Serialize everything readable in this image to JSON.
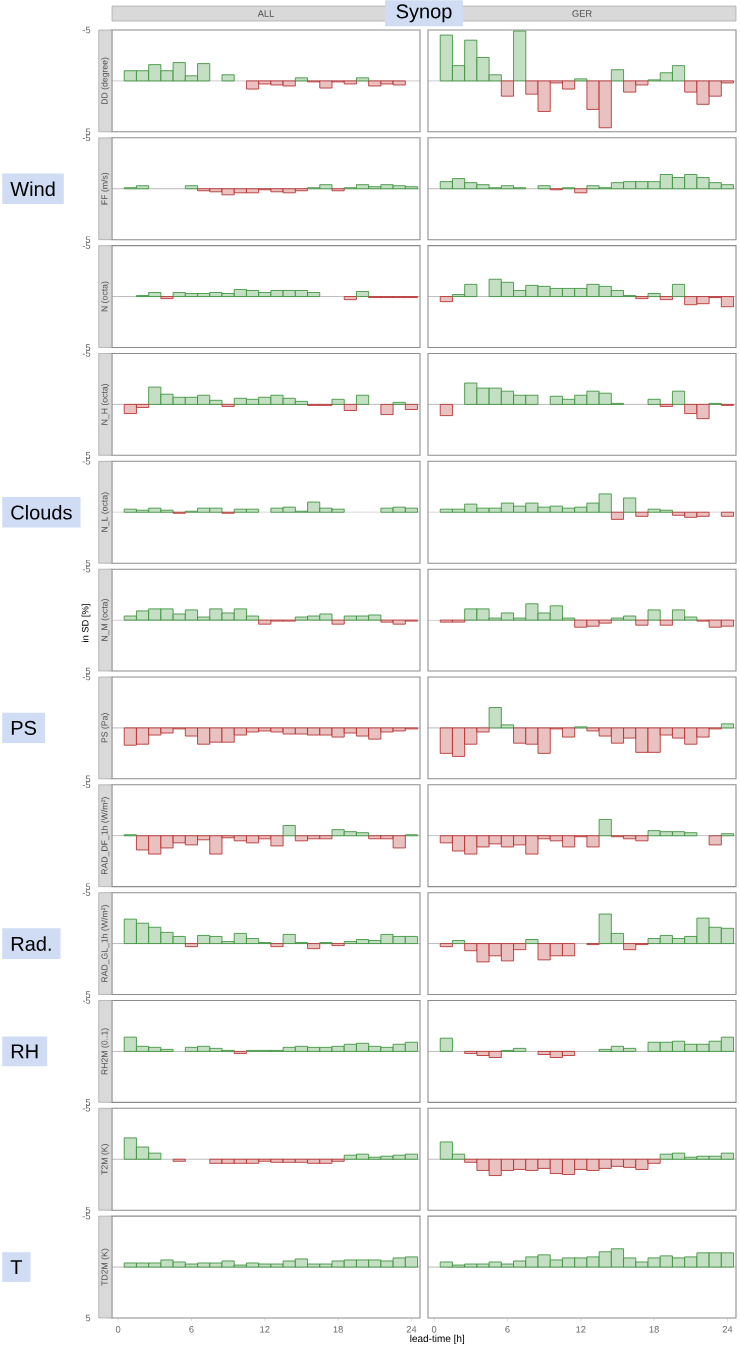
{
  "chart_data": [
    {
      "type": "bar",
      "title": "ALL",
      "ylabel": "DD (degree)",
      "annotations": [
        "Synop",
        "in SD [%]"
      ],
      "x": [
        1,
        2,
        3,
        4,
        5,
        6,
        7,
        8,
        9,
        10,
        11,
        12,
        13,
        14,
        15,
        16,
        17,
        18,
        19,
        20,
        21,
        22,
        23
      ],
      "values": [
        -1.0,
        -1.0,
        -1.6,
        -1.0,
        -1.8,
        -0.5,
        -1.7,
        null,
        -0.6,
        null,
        0.8,
        0.3,
        0.4,
        0.5,
        -0.3,
        0.1,
        0.7,
        0.1,
        0.3,
        -0.3,
        0.5,
        0.3,
        0.4
      ],
      "colors": [
        "#2e8b2e",
        "#2e8b2e",
        "#2e8b2e",
        "#2e8b2e",
        "#2e8b2e",
        "#2e8b2e",
        "#2e8b2e",
        "#2e8b2e",
        "#2e8b2e",
        "#2e8b2e",
        "#b22222",
        "#b22222",
        "#b22222",
        "#b22222",
        "#2e8b2e",
        "#b22222",
        "#b22222",
        "#b22222",
        "#b22222",
        "#2e8b2e",
        "#b22222",
        "#b22222",
        "#b22222"
      ],
      "xlim": [
        -0.5,
        24.7
      ],
      "xticks": [
        0,
        6,
        12,
        18,
        24
      ],
      "ylim": [
        5,
        -5
      ],
      "yticks": [
        -5,
        5
      ],
      "tick_labels": "y",
      "ref_lines": [
        {
          "axis": "y",
          "value": 0,
          "color": "#999999"
        }
      ]
    },
    {
      "type": "bar",
      "title": "GER",
      "x": [
        1,
        2,
        3,
        4,
        5,
        6,
        7,
        8,
        9,
        10,
        11,
        12,
        13,
        14,
        15,
        16,
        17,
        18,
        19,
        20,
        21,
        22,
        23,
        24
      ],
      "values": [
        -4.5,
        -1.5,
        -4.0,
        -2.3,
        -0.6,
        1.5,
        -4.9,
        1.3,
        3.0,
        0.2,
        0.8,
        -0.2,
        2.8,
        4.6,
        -1.1,
        1.1,
        0.4,
        -0.1,
        -0.8,
        -1.5,
        1.1,
        2.3,
        1.5,
        0.2
      ],
      "colors": [
        "#2e8b2e",
        "#2e8b2e",
        "#2e8b2e",
        "#2e8b2e",
        "#2e8b2e",
        "#b22222",
        "#2e8b2e",
        "#b22222",
        "#b22222",
        "#b22222",
        "#b22222",
        "#2e8b2e",
        "#b22222",
        "#b22222",
        "#2e8b2e",
        "#b22222",
        "#b22222",
        "#2e8b2e",
        "#2e8b2e",
        "#2e8b2e",
        "#b22222",
        "#b22222",
        "#b22222",
        "#b22222"
      ],
      "xlim": [
        -0.5,
        24.7
      ],
      "xticks": [
        0,
        6,
        12,
        18,
        24
      ],
      "ylim": [
        5,
        -5
      ],
      "yticks": [
        -5,
        5
      ],
      "tick_labels": false,
      "ref_lines": [
        {
          "axis": "y",
          "value": 0,
          "color": "#999999"
        }
      ]
    },
    {
      "type": "bar",
      "ylabel": "FF (m/s)",
      "annotations": [
        "Wind"
      ],
      "x": [
        1,
        2,
        3,
        4,
        5,
        6,
        7,
        8,
        9,
        10,
        11,
        12,
        13,
        14,
        15,
        16,
        17,
        18,
        19,
        20,
        21,
        22,
        23,
        24
      ],
      "values": [
        -0.1,
        -0.3,
        null,
        null,
        null,
        -0.3,
        0.2,
        0.3,
        0.6,
        0.4,
        0.4,
        0.1,
        0.3,
        0.4,
        0.2,
        -0.1,
        -0.4,
        0.2,
        -0.1,
        -0.4,
        -0.2,
        -0.4,
        -0.3,
        -0.2
      ],
      "colors": [
        "#2e8b2e",
        "#2e8b2e",
        "#2e8b2e",
        "#2e8b2e",
        "#2e8b2e",
        "#2e8b2e",
        "#b22222",
        "#b22222",
        "#b22222",
        "#b22222",
        "#b22222",
        "#b22222",
        "#b22222",
        "#b22222",
        "#b22222",
        "#2e8b2e",
        "#2e8b2e",
        "#b22222",
        "#2e8b2e",
        "#2e8b2e",
        "#2e8b2e",
        "#2e8b2e",
        "#2e8b2e",
        "#2e8b2e"
      ],
      "xlim": [
        -0.5,
        24.7
      ],
      "xticks": [
        0,
        6,
        12,
        18,
        24
      ],
      "ylim": [
        5,
        -5
      ],
      "yticks": [
        -5,
        5
      ],
      "tick_labels": "y",
      "ref_lines": [
        {
          "axis": "y",
          "value": 0,
          "color": "#999999"
        }
      ]
    },
    {
      "type": "bar",
      "x": [
        1,
        2,
        3,
        4,
        5,
        6,
        7,
        8,
        9,
        10,
        11,
        12,
        13,
        14,
        15,
        16,
        17,
        18,
        19,
        20,
        21,
        22,
        23,
        24
      ],
      "values": [
        -0.7,
        -1.0,
        -0.6,
        -0.4,
        -0.1,
        -0.3,
        -0.1,
        null,
        -0.3,
        0.1,
        -0.1,
        0.4,
        -0.3,
        -0.1,
        -0.6,
        -0.7,
        -0.7,
        -0.7,
        -1.4,
        -1.1,
        -1.4,
        -1.1,
        -0.6,
        -0.4
      ],
      "colors": [
        "#2e8b2e",
        "#2e8b2e",
        "#2e8b2e",
        "#2e8b2e",
        "#2e8b2e",
        "#2e8b2e",
        "#2e8b2e",
        "#2e8b2e",
        "#2e8b2e",
        "#b22222",
        "#2e8b2e",
        "#b22222",
        "#2e8b2e",
        "#2e8b2e",
        "#2e8b2e",
        "#2e8b2e",
        "#2e8b2e",
        "#2e8b2e",
        "#2e8b2e",
        "#2e8b2e",
        "#2e8b2e",
        "#2e8b2e",
        "#2e8b2e",
        "#2e8b2e"
      ],
      "xlim": [
        -0.5,
        24.7
      ],
      "xticks": [
        0,
        6,
        12,
        18,
        24
      ],
      "ylim": [
        5,
        -5
      ],
      "yticks": [
        -5,
        5
      ],
      "tick_labels": false,
      "ref_lines": [
        {
          "axis": "y",
          "value": 0,
          "color": "#999999"
        }
      ]
    },
    {
      "type": "bar",
      "ylabel": "N (octa)",
      "x": [
        2,
        3,
        4,
        5,
        6,
        7,
        8,
        9,
        10,
        11,
        12,
        13,
        14,
        15,
        16,
        17,
        18,
        19,
        20,
        21,
        22,
        23,
        24
      ],
      "values": [
        -0.1,
        -0.4,
        0.2,
        -0.4,
        -0.3,
        -0.3,
        -0.4,
        -0.3,
        -0.7,
        -0.6,
        -0.4,
        -0.6,
        -0.6,
        -0.6,
        -0.4,
        null,
        null,
        0.3,
        -0.5,
        0.1,
        0.1,
        0.1,
        0.1
      ],
      "colors": [
        "#2e8b2e",
        "#2e8b2e",
        "#b22222",
        "#2e8b2e",
        "#2e8b2e",
        "#2e8b2e",
        "#2e8b2e",
        "#2e8b2e",
        "#2e8b2e",
        "#2e8b2e",
        "#2e8b2e",
        "#2e8b2e",
        "#2e8b2e",
        "#2e8b2e",
        "#2e8b2e",
        "#2e8b2e",
        "#2e8b2e",
        "#b22222",
        "#2e8b2e",
        "#b22222",
        "#b22222",
        "#b22222",
        "#b22222"
      ],
      "xlim": [
        -0.5,
        24.7
      ],
      "xticks": [
        0,
        6,
        12,
        18,
        24
      ],
      "ylim": [
        5,
        -5
      ],
      "yticks": [
        -5,
        5
      ],
      "tick_labels": "y",
      "ref_lines": [
        {
          "axis": "y",
          "value": 0,
          "color": "#999999"
        }
      ]
    },
    {
      "type": "bar",
      "x": [
        1,
        2,
        3,
        4,
        5,
        6,
        7,
        8,
        9,
        10,
        11,
        12,
        13,
        14,
        15,
        16,
        17,
        18,
        19,
        20,
        21,
        22,
        23,
        24
      ],
      "values": [
        0.5,
        -0.2,
        -1.2,
        null,
        -1.7,
        -1.4,
        -0.6,
        -1.1,
        -1.0,
        -0.8,
        -0.8,
        -0.8,
        -1.2,
        -1.0,
        -0.6,
        -0.1,
        0.2,
        -0.3,
        0.3,
        -1.2,
        0.8,
        0.7,
        0.1,
        1.0
      ],
      "colors": [
        "#b22222",
        "#2e8b2e",
        "#2e8b2e",
        "#2e8b2e",
        "#2e8b2e",
        "#2e8b2e",
        "#2e8b2e",
        "#2e8b2e",
        "#2e8b2e",
        "#2e8b2e",
        "#2e8b2e",
        "#2e8b2e",
        "#2e8b2e",
        "#2e8b2e",
        "#2e8b2e",
        "#2e8b2e",
        "#b22222",
        "#2e8b2e",
        "#b22222",
        "#2e8b2e",
        "#b22222",
        "#b22222",
        "#b22222",
        "#b22222"
      ],
      "xlim": [
        -0.5,
        24.7
      ],
      "xticks": [
        0,
        6,
        12,
        18,
        24
      ],
      "ylim": [
        5,
        -5
      ],
      "yticks": [
        -5,
        5
      ],
      "tick_labels": false,
      "ref_lines": [
        {
          "axis": "y",
          "value": 0,
          "color": "#999999"
        }
      ]
    },
    {
      "type": "bar",
      "ylabel": "N_H (octa)",
      "x": [
        1,
        2,
        3,
        4,
        5,
        6,
        7,
        8,
        9,
        10,
        11,
        12,
        13,
        14,
        15,
        16,
        17,
        18,
        19,
        20,
        21,
        22,
        23,
        24
      ],
      "values": [
        0.9,
        0.3,
        -1.7,
        -1.0,
        -0.7,
        -0.7,
        -0.9,
        -0.4,
        0.2,
        -0.6,
        -0.5,
        -0.7,
        -0.9,
        -0.6,
        -0.3,
        0.1,
        0.1,
        -0.5,
        0.6,
        -0.9,
        null,
        1.0,
        -0.2,
        0.5
      ],
      "colors": [
        "#b22222",
        "#b22222",
        "#2e8b2e",
        "#2e8b2e",
        "#2e8b2e",
        "#2e8b2e",
        "#2e8b2e",
        "#2e8b2e",
        "#b22222",
        "#2e8b2e",
        "#2e8b2e",
        "#2e8b2e",
        "#2e8b2e",
        "#2e8b2e",
        "#2e8b2e",
        "#b22222",
        "#b22222",
        "#2e8b2e",
        "#b22222",
        "#2e8b2e",
        "#2e8b2e",
        "#b22222",
        "#2e8b2e",
        "#b22222"
      ],
      "xlim": [
        -0.5,
        24.7
      ],
      "xticks": [
        0,
        6,
        12,
        18,
        24
      ],
      "ylim": [
        5,
        -5
      ],
      "yticks": [
        -5,
        5
      ],
      "tick_labels": "y",
      "ref_lines": [
        {
          "axis": "y",
          "value": 0,
          "color": "#999999"
        }
      ]
    },
    {
      "type": "bar",
      "x": [
        1,
        2,
        3,
        4,
        5,
        6,
        7,
        8,
        9,
        10,
        11,
        12,
        13,
        14,
        15,
        16,
        17,
        18,
        19,
        20,
        21,
        22,
        23,
        24
      ],
      "values": [
        1.1,
        null,
        -2.1,
        -1.6,
        -1.6,
        -1.3,
        -0.9,
        -0.9,
        null,
        -0.8,
        -0.5,
        -0.9,
        -1.3,
        -1.1,
        -0.1,
        null,
        null,
        -0.5,
        0.2,
        -1.3,
        0.9,
        1.4,
        -0.1,
        0.1
      ],
      "colors": [
        "#b22222",
        "#2e8b2e",
        "#2e8b2e",
        "#2e8b2e",
        "#2e8b2e",
        "#2e8b2e",
        "#2e8b2e",
        "#2e8b2e",
        "#2e8b2e",
        "#2e8b2e",
        "#2e8b2e",
        "#2e8b2e",
        "#2e8b2e",
        "#2e8b2e",
        "#2e8b2e",
        "#2e8b2e",
        "#2e8b2e",
        "#2e8b2e",
        "#b22222",
        "#2e8b2e",
        "#b22222",
        "#b22222",
        "#2e8b2e",
        "#b22222"
      ],
      "xlim": [
        -0.5,
        24.7
      ],
      "xticks": [
        0,
        6,
        12,
        18,
        24
      ],
      "ylim": [
        5,
        -5
      ],
      "yticks": [
        -5,
        5
      ],
      "tick_labels": false,
      "ref_lines": [
        {
          "axis": "y",
          "value": 0,
          "color": "#999999"
        }
      ]
    },
    {
      "type": "bar",
      "ylabel": "N_L (octa)",
      "annotations": [
        "Clouds"
      ],
      "x": [
        1,
        2,
        3,
        4,
        5,
        6,
        7,
        8,
        9,
        10,
        11,
        12,
        13,
        14,
        15,
        16,
        17,
        18,
        19,
        20,
        21,
        22,
        23,
        24
      ],
      "values": [
        -0.3,
        -0.2,
        -0.4,
        -0.2,
        0.1,
        -0.1,
        -0.4,
        -0.4,
        0.1,
        -0.3,
        -0.3,
        null,
        -0.4,
        -0.5,
        -0.1,
        -1.0,
        -0.4,
        -0.3,
        null,
        null,
        null,
        -0.4,
        -0.5,
        -0.4
      ],
      "colors": [
        "#2e8b2e",
        "#2e8b2e",
        "#2e8b2e",
        "#2e8b2e",
        "#b22222",
        "#2e8b2e",
        "#2e8b2e",
        "#2e8b2e",
        "#b22222",
        "#2e8b2e",
        "#2e8b2e",
        "#2e8b2e",
        "#2e8b2e",
        "#2e8b2e",
        "#2e8b2e",
        "#2e8b2e",
        "#2e8b2e",
        "#2e8b2e",
        "#2e8b2e",
        "#2e8b2e",
        "#2e8b2e",
        "#2e8b2e",
        "#2e8b2e",
        "#2e8b2e"
      ],
      "xlim": [
        -0.5,
        24.7
      ],
      "xticks": [
        0,
        6,
        12,
        18,
        24
      ],
      "ylim": [
        5,
        -5
      ],
      "yticks": [
        -5,
        5
      ],
      "tick_labels": "y",
      "ref_lines": [
        {
          "axis": "y",
          "value": 0,
          "color": "#999999"
        }
      ]
    },
    {
      "type": "bar",
      "x": [
        1,
        2,
        3,
        4,
        5,
        6,
        7,
        8,
        9,
        10,
        11,
        12,
        13,
        14,
        15,
        16,
        17,
        18,
        19,
        20,
        21,
        22,
        23,
        24
      ],
      "values": [
        -0.3,
        -0.3,
        -0.8,
        -0.4,
        -0.4,
        -0.9,
        -0.6,
        -0.9,
        -0.5,
        -0.6,
        -0.4,
        -0.5,
        -0.9,
        -1.8,
        0.7,
        -1.4,
        0.4,
        -0.3,
        -0.2,
        0.3,
        0.5,
        0.4,
        null,
        0.4
      ],
      "colors": [
        "#2e8b2e",
        "#2e8b2e",
        "#2e8b2e",
        "#2e8b2e",
        "#2e8b2e",
        "#2e8b2e",
        "#2e8b2e",
        "#2e8b2e",
        "#2e8b2e",
        "#2e8b2e",
        "#2e8b2e",
        "#2e8b2e",
        "#2e8b2e",
        "#2e8b2e",
        "#b22222",
        "#2e8b2e",
        "#b22222",
        "#2e8b2e",
        "#2e8b2e",
        "#b22222",
        "#b22222",
        "#b22222",
        "#2e8b2e",
        "#b22222"
      ],
      "xlim": [
        -0.5,
        24.7
      ],
      "xticks": [
        0,
        6,
        12,
        18,
        24
      ],
      "ylim": [
        5,
        -5
      ],
      "yticks": [
        -5,
        5
      ],
      "tick_labels": false,
      "ref_lines": [
        {
          "axis": "y",
          "value": 0,
          "color": "#999999"
        }
      ]
    },
    {
      "type": "bar",
      "ylabel": "N_M (octa)",
      "x": [
        1,
        2,
        3,
        4,
        5,
        6,
        7,
        8,
        9,
        10,
        11,
        12,
        13,
        14,
        15,
        16,
        17,
        18,
        19,
        20,
        21,
        22,
        23,
        24
      ],
      "values": [
        -0.4,
        -0.9,
        -1.1,
        -1.1,
        -0.6,
        -1.0,
        -0.3,
        -1.1,
        -0.7,
        -1.1,
        -0.4,
        0.4,
        0.1,
        0.1,
        -0.3,
        -0.4,
        -0.6,
        0.4,
        -0.4,
        -0.4,
        -0.5,
        0.2,
        0.4,
        0.1
      ],
      "colors": [
        "#2e8b2e",
        "#2e8b2e",
        "#2e8b2e",
        "#2e8b2e",
        "#2e8b2e",
        "#2e8b2e",
        "#2e8b2e",
        "#2e8b2e",
        "#2e8b2e",
        "#2e8b2e",
        "#2e8b2e",
        "#b22222",
        "#b22222",
        "#b22222",
        "#2e8b2e",
        "#2e8b2e",
        "#2e8b2e",
        "#b22222",
        "#2e8b2e",
        "#2e8b2e",
        "#2e8b2e",
        "#b22222",
        "#b22222",
        "#b22222"
      ],
      "xlim": [
        -0.5,
        24.7
      ],
      "xticks": [
        0,
        6,
        12,
        18,
        24
      ],
      "ylim": [
        5,
        -5
      ],
      "yticks": [
        -5,
        5
      ],
      "tick_labels": "y",
      "ref_lines": [
        {
          "axis": "y",
          "value": 0,
          "color": "#999999"
        }
      ]
    },
    {
      "type": "bar",
      "x": [
        1,
        2,
        3,
        4,
        5,
        6,
        7,
        8,
        9,
        10,
        11,
        12,
        13,
        14,
        15,
        16,
        17,
        18,
        19,
        20,
        21,
        22,
        23,
        24
      ],
      "values": [
        0.2,
        0.2,
        -1.1,
        -1.1,
        -0.2,
        -0.7,
        -0.2,
        -1.6,
        -0.7,
        -1.4,
        -0.2,
        0.7,
        0.6,
        0.3,
        -0.2,
        -0.4,
        0.5,
        -1.0,
        0.5,
        -1.0,
        -0.3,
        0.1,
        0.7,
        0.6
      ],
      "colors": [
        "#b22222",
        "#b22222",
        "#2e8b2e",
        "#2e8b2e",
        "#2e8b2e",
        "#2e8b2e",
        "#2e8b2e",
        "#2e8b2e",
        "#2e8b2e",
        "#2e8b2e",
        "#2e8b2e",
        "#b22222",
        "#b22222",
        "#b22222",
        "#2e8b2e",
        "#2e8b2e",
        "#b22222",
        "#2e8b2e",
        "#b22222",
        "#2e8b2e",
        "#2e8b2e",
        "#b22222",
        "#b22222",
        "#b22222"
      ],
      "xlim": [
        -0.5,
        24.7
      ],
      "xticks": [
        0,
        6,
        12,
        18,
        24
      ],
      "ylim": [
        5,
        -5
      ],
      "yticks": [
        -5,
        5
      ],
      "tick_labels": false,
      "ref_lines": [
        {
          "axis": "y",
          "value": 0,
          "color": "#999999"
        }
      ]
    },
    {
      "type": "bar",
      "ylabel": "PS (Pa)",
      "annotations": [
        "PS"
      ],
      "x": [
        1,
        2,
        3,
        4,
        5,
        6,
        7,
        8,
        9,
        10,
        11,
        12,
        13,
        14,
        15,
        16,
        17,
        18,
        19,
        20,
        21,
        22,
        23,
        24
      ],
      "values": [
        1.7,
        1.6,
        0.7,
        0.5,
        0.1,
        0.8,
        1.6,
        1.4,
        1.4,
        0.7,
        0.4,
        0.3,
        0.4,
        0.6,
        0.6,
        0.7,
        0.7,
        0.9,
        0.5,
        0.8,
        1.1,
        0.4,
        0.3,
        0.1
      ],
      "colors": [
        "#b22222",
        "#b22222",
        "#b22222",
        "#b22222",
        "#b22222",
        "#b22222",
        "#b22222",
        "#b22222",
        "#b22222",
        "#b22222",
        "#b22222",
        "#b22222",
        "#b22222",
        "#b22222",
        "#b22222",
        "#b22222",
        "#b22222",
        "#b22222",
        "#b22222",
        "#b22222",
        "#b22222",
        "#b22222",
        "#b22222",
        "#b22222"
      ],
      "xlim": [
        -0.5,
        24.7
      ],
      "xticks": [
        0,
        6,
        12,
        18,
        24
      ],
      "ylim": [
        5,
        -5
      ],
      "yticks": [
        -5,
        5
      ],
      "tick_labels": "y",
      "ref_lines": [
        {
          "axis": "y",
          "value": 0,
          "color": "#999999"
        }
      ]
    },
    {
      "type": "bar",
      "x": [
        1,
        2,
        3,
        4,
        5,
        6,
        7,
        8,
        9,
        10,
        11,
        12,
        13,
        14,
        15,
        16,
        17,
        18,
        19,
        20,
        21,
        22,
        23,
        24
      ],
      "values": [
        2.5,
        2.8,
        1.6,
        0.4,
        -2.0,
        -0.3,
        1.5,
        1.6,
        2.5,
        0.1,
        0.9,
        -0.1,
        0.3,
        0.8,
        1.5,
        1.0,
        2.4,
        2.4,
        0.7,
        1.0,
        1.6,
        0.9,
        0.1,
        -0.4
      ],
      "colors": [
        "#b22222",
        "#b22222",
        "#b22222",
        "#b22222",
        "#2e8b2e",
        "#2e8b2e",
        "#b22222",
        "#b22222",
        "#b22222",
        "#b22222",
        "#b22222",
        "#2e8b2e",
        "#b22222",
        "#b22222",
        "#b22222",
        "#b22222",
        "#b22222",
        "#b22222",
        "#b22222",
        "#b22222",
        "#b22222",
        "#b22222",
        "#b22222",
        "#2e8b2e"
      ],
      "xlim": [
        -0.5,
        24.7
      ],
      "xticks": [
        0,
        6,
        12,
        18,
        24
      ],
      "ylim": [
        5,
        -5
      ],
      "yticks": [
        -5,
        5
      ],
      "tick_labels": false,
      "ref_lines": [
        {
          "axis": "y",
          "value": 0,
          "color": "#999999"
        }
      ]
    },
    {
      "type": "bar",
      "ylabel": "RAD_DF_1h (W/m²)",
      "x": [
        1,
        2,
        3,
        4,
        5,
        6,
        7,
        8,
        9,
        10,
        11,
        12,
        13,
        14,
        15,
        16,
        17,
        18,
        19,
        20,
        21,
        22,
        23,
        24
      ],
      "values": [
        -0.1,
        1.4,
        1.8,
        1.2,
        0.7,
        0.9,
        0.4,
        1.8,
        0.2,
        0.5,
        0.7,
        0.3,
        1.0,
        -1.0,
        0.5,
        0.3,
        0.3,
        -0.6,
        -0.4,
        -0.3,
        0.3,
        0.3,
        1.2,
        -0.1
      ],
      "colors": [
        "#2e8b2e",
        "#b22222",
        "#b22222",
        "#b22222",
        "#b22222",
        "#b22222",
        "#b22222",
        "#b22222",
        "#b22222",
        "#b22222",
        "#b22222",
        "#b22222",
        "#b22222",
        "#2e8b2e",
        "#b22222",
        "#b22222",
        "#b22222",
        "#2e8b2e",
        "#2e8b2e",
        "#2e8b2e",
        "#b22222",
        "#b22222",
        "#b22222",
        "#2e8b2e"
      ],
      "xlim": [
        -0.5,
        24.7
      ],
      "xticks": [
        0,
        6,
        12,
        18,
        24
      ],
      "ylim": [
        5,
        -5
      ],
      "yticks": [
        -5,
        5
      ],
      "tick_labels": "y",
      "ref_lines": [
        {
          "axis": "y",
          "value": 0,
          "color": "#999999"
        }
      ]
    },
    {
      "type": "bar",
      "x": [
        1,
        2,
        3,
        4,
        5,
        6,
        7,
        8,
        9,
        10,
        11,
        12,
        13,
        14,
        15,
        16,
        17,
        18,
        19,
        20,
        21,
        22,
        23,
        24
      ],
      "values": [
        0.7,
        1.5,
        1.8,
        1.1,
        0.8,
        1.1,
        0.9,
        1.8,
        0.3,
        0.5,
        1.1,
        0.1,
        1.1,
        -1.6,
        0.1,
        0.3,
        0.5,
        -0.5,
        -0.4,
        -0.4,
        -0.3,
        null,
        0.9,
        -0.2
      ],
      "colors": [
        "#b22222",
        "#b22222",
        "#b22222",
        "#b22222",
        "#b22222",
        "#b22222",
        "#b22222",
        "#b22222",
        "#b22222",
        "#b22222",
        "#b22222",
        "#b22222",
        "#b22222",
        "#2e8b2e",
        "#b22222",
        "#b22222",
        "#b22222",
        "#2e8b2e",
        "#2e8b2e",
        "#2e8b2e",
        "#2e8b2e",
        "#2e8b2e",
        "#b22222",
        "#2e8b2e"
      ],
      "xlim": [
        -0.5,
        24.7
      ],
      "xticks": [
        0,
        6,
        12,
        18,
        24
      ],
      "ylim": [
        5,
        -5
      ],
      "yticks": [
        -5,
        5
      ],
      "tick_labels": false,
      "ref_lines": [
        {
          "axis": "y",
          "value": 0,
          "color": "#999999"
        }
      ]
    },
    {
      "type": "bar",
      "ylabel": "RAD_GL_1h (W/m²)",
      "annotations": [
        "Rad."
      ],
      "x": [
        1,
        2,
        3,
        4,
        5,
        6,
        7,
        8,
        9,
        10,
        11,
        12,
        13,
        14,
        15,
        16,
        17,
        18,
        19,
        20,
        21,
        22,
        23,
        24
      ],
      "values": [
        -2.4,
        -2.0,
        -1.6,
        -1.1,
        -0.7,
        0.3,
        -0.8,
        -0.7,
        -0.2,
        -1.0,
        -0.5,
        -0.1,
        0.3,
        -0.9,
        -0.1,
        0.5,
        -0.1,
        0.2,
        -0.2,
        -0.4,
        -0.3,
        -0.9,
        -0.7,
        -0.7
      ],
      "colors": [
        "#2e8b2e",
        "#2e8b2e",
        "#2e8b2e",
        "#2e8b2e",
        "#2e8b2e",
        "#b22222",
        "#2e8b2e",
        "#2e8b2e",
        "#2e8b2e",
        "#2e8b2e",
        "#2e8b2e",
        "#2e8b2e",
        "#b22222",
        "#2e8b2e",
        "#2e8b2e",
        "#b22222",
        "#2e8b2e",
        "#b22222",
        "#2e8b2e",
        "#2e8b2e",
        "#2e8b2e",
        "#2e8b2e",
        "#2e8b2e",
        "#2e8b2e"
      ],
      "xlim": [
        -0.5,
        24.7
      ],
      "xticks": [
        0,
        6,
        12,
        18,
        24
      ],
      "ylim": [
        5,
        -5
      ],
      "yticks": [
        -5,
        5
      ],
      "tick_labels": "y",
      "ref_lines": [
        {
          "axis": "y",
          "value": 0,
          "color": "#999999"
        }
      ]
    },
    {
      "type": "bar",
      "x": [
        1,
        2,
        3,
        4,
        5,
        6,
        7,
        8,
        9,
        10,
        11,
        12,
        13,
        14,
        15,
        16,
        17,
        18,
        19,
        20,
        21,
        22,
        23,
        24
      ],
      "values": [
        0.3,
        -0.3,
        0.7,
        1.8,
        1.2,
        1.7,
        0.6,
        -0.4,
        1.6,
        1.2,
        1.2,
        null,
        0.1,
        -2.9,
        -1.0,
        0.6,
        0.1,
        -0.5,
        -0.8,
        -0.5,
        -0.7,
        -2.5,
        -1.6,
        -1.5
      ],
      "colors": [
        "#b22222",
        "#2e8b2e",
        "#b22222",
        "#b22222",
        "#b22222",
        "#b22222",
        "#b22222",
        "#2e8b2e",
        "#b22222",
        "#b22222",
        "#b22222",
        "#2e8b2e",
        "#b22222",
        "#2e8b2e",
        "#2e8b2e",
        "#b22222",
        "#b22222",
        "#2e8b2e",
        "#2e8b2e",
        "#2e8b2e",
        "#2e8b2e",
        "#2e8b2e",
        "#2e8b2e",
        "#2e8b2e"
      ],
      "xlim": [
        -0.5,
        24.7
      ],
      "xticks": [
        0,
        6,
        12,
        18,
        24
      ],
      "ylim": [
        5,
        -5
      ],
      "yticks": [
        -5,
        5
      ],
      "tick_labels": false,
      "ref_lines": [
        {
          "axis": "y",
          "value": 0,
          "color": "#999999"
        }
      ]
    },
    {
      "type": "bar",
      "ylabel": "RH2M (0..1)",
      "annotations": [
        "RH"
      ],
      "x": [
        1,
        2,
        3,
        4,
        5,
        6,
        7,
        8,
        9,
        10,
        11,
        12,
        13,
        14,
        15,
        16,
        17,
        18,
        19,
        20,
        21,
        22,
        23,
        24
      ],
      "values": [
        -1.4,
        -0.5,
        -0.4,
        -0.2,
        null,
        -0.4,
        -0.5,
        -0.3,
        -0.1,
        0.2,
        -0.1,
        -0.1,
        -0.1,
        -0.4,
        -0.5,
        -0.4,
        -0.4,
        -0.5,
        -0.7,
        -0.8,
        -0.5,
        -0.4,
        -0.7,
        -0.9
      ],
      "colors": [
        "#2e8b2e",
        "#2e8b2e",
        "#2e8b2e",
        "#2e8b2e",
        "#2e8b2e",
        "#2e8b2e",
        "#2e8b2e",
        "#2e8b2e",
        "#2e8b2e",
        "#b22222",
        "#2e8b2e",
        "#2e8b2e",
        "#2e8b2e",
        "#2e8b2e",
        "#2e8b2e",
        "#2e8b2e",
        "#2e8b2e",
        "#2e8b2e",
        "#2e8b2e",
        "#2e8b2e",
        "#2e8b2e",
        "#2e8b2e",
        "#2e8b2e",
        "#2e8b2e"
      ],
      "xlim": [
        -0.5,
        24.7
      ],
      "xticks": [
        0,
        6,
        12,
        18,
        24
      ],
      "ylim": [
        5,
        -5
      ],
      "yticks": [
        -5,
        5
      ],
      "tick_labels": "y",
      "ref_lines": [
        {
          "axis": "y",
          "value": 0,
          "color": "#999999"
        }
      ]
    },
    {
      "type": "bar",
      "x": [
        1,
        2,
        3,
        4,
        5,
        6,
        7,
        8,
        9,
        10,
        11,
        12,
        13,
        14,
        15,
        16,
        17,
        18,
        19,
        20,
        21,
        22,
        23,
        24
      ],
      "values": [
        -1.3,
        null,
        0.2,
        0.4,
        0.6,
        -0.1,
        -0.3,
        null,
        0.3,
        0.6,
        0.4,
        null,
        null,
        -0.2,
        -0.5,
        -0.3,
        null,
        -0.9,
        -0.9,
        -1.0,
        -0.7,
        -0.7,
        -1.0,
        -1.4
      ],
      "colors": [
        "#2e8b2e",
        "#2e8b2e",
        "#b22222",
        "#b22222",
        "#b22222",
        "#2e8b2e",
        "#2e8b2e",
        "#2e8b2e",
        "#b22222",
        "#b22222",
        "#b22222",
        "#2e8b2e",
        "#2e8b2e",
        "#2e8b2e",
        "#2e8b2e",
        "#2e8b2e",
        "#2e8b2e",
        "#2e8b2e",
        "#2e8b2e",
        "#2e8b2e",
        "#2e8b2e",
        "#2e8b2e",
        "#2e8b2e",
        "#2e8b2e"
      ],
      "xlim": [
        -0.5,
        24.7
      ],
      "xticks": [
        0,
        6,
        12,
        18,
        24
      ],
      "ylim": [
        5,
        -5
      ],
      "yticks": [
        -5,
        5
      ],
      "tick_labels": false,
      "ref_lines": [
        {
          "axis": "y",
          "value": 0,
          "color": "#999999"
        }
      ]
    },
    {
      "type": "bar",
      "ylabel": "T2M (K)",
      "x": [
        1,
        2,
        3,
        4,
        5,
        6,
        7,
        8,
        9,
        10,
        11,
        12,
        13,
        14,
        15,
        16,
        17,
        18,
        19,
        20,
        21,
        22,
        23,
        24
      ],
      "values": [
        -2.1,
        -1.2,
        -0.6,
        null,
        0.2,
        null,
        null,
        0.4,
        0.4,
        0.4,
        0.4,
        0.2,
        0.3,
        0.3,
        0.3,
        0.4,
        0.4,
        0.2,
        -0.4,
        -0.5,
        -0.2,
        -0.3,
        -0.4,
        -0.5
      ],
      "colors": [
        "#2e8b2e",
        "#2e8b2e",
        "#2e8b2e",
        "#2e8b2e",
        "#b22222",
        "#2e8b2e",
        "#2e8b2e",
        "#b22222",
        "#b22222",
        "#b22222",
        "#b22222",
        "#b22222",
        "#b22222",
        "#b22222",
        "#b22222",
        "#b22222",
        "#b22222",
        "#b22222",
        "#2e8b2e",
        "#2e8b2e",
        "#2e8b2e",
        "#2e8b2e",
        "#2e8b2e",
        "#2e8b2e"
      ],
      "xlim": [
        -0.5,
        24.7
      ],
      "xticks": [
        0,
        6,
        12,
        18,
        24
      ],
      "ylim": [
        5,
        -5
      ],
      "yticks": [
        -5,
        5
      ],
      "tick_labels": "y",
      "ref_lines": [
        {
          "axis": "y",
          "value": 0,
          "color": "#999999"
        }
      ]
    },
    {
      "type": "bar",
      "x": [
        1,
        2,
        3,
        4,
        5,
        6,
        7,
        8,
        9,
        10,
        11,
        12,
        13,
        14,
        15,
        16,
        17,
        18,
        19,
        20,
        21,
        22,
        23,
        24
      ],
      "values": [
        -1.7,
        -0.5,
        0.3,
        1.1,
        1.6,
        1.1,
        1.0,
        1.1,
        0.9,
        1.4,
        1.5,
        1.0,
        1.1,
        0.9,
        0.7,
        0.8,
        1.0,
        0.4,
        -0.5,
        -0.6,
        -0.2,
        -0.3,
        -0.3,
        -0.6
      ],
      "colors": [
        "#2e8b2e",
        "#2e8b2e",
        "#b22222",
        "#b22222",
        "#b22222",
        "#b22222",
        "#b22222",
        "#b22222",
        "#b22222",
        "#b22222",
        "#b22222",
        "#b22222",
        "#b22222",
        "#b22222",
        "#b22222",
        "#b22222",
        "#b22222",
        "#b22222",
        "#2e8b2e",
        "#2e8b2e",
        "#2e8b2e",
        "#2e8b2e",
        "#2e8b2e",
        "#2e8b2e"
      ],
      "xlim": [
        -0.5,
        24.7
      ],
      "xticks": [
        0,
        6,
        12,
        18,
        24
      ],
      "ylim": [
        5,
        -5
      ],
      "yticks": [
        -5,
        5
      ],
      "tick_labels": false,
      "ref_lines": [
        {
          "axis": "y",
          "value": 0,
          "color": "#999999"
        }
      ]
    },
    {
      "type": "bar",
      "ylabel": "TD2M (K)",
      "annotations": [
        "T"
      ],
      "x": [
        1,
        2,
        3,
        4,
        5,
        6,
        7,
        8,
        9,
        10,
        11,
        12,
        13,
        14,
        15,
        16,
        17,
        18,
        19,
        20,
        21,
        22,
        23,
        24
      ],
      "values": [
        -0.4,
        -0.4,
        -0.4,
        -0.7,
        -0.5,
        -0.3,
        -0.4,
        -0.4,
        -0.6,
        -0.2,
        -0.4,
        -0.3,
        -0.3,
        -0.6,
        -0.8,
        -0.3,
        -0.3,
        -0.6,
        -0.7,
        -0.7,
        -0.7,
        -0.6,
        -0.9,
        -1.0
      ],
      "colors": [
        "#2e8b2e",
        "#2e8b2e",
        "#2e8b2e",
        "#2e8b2e",
        "#2e8b2e",
        "#2e8b2e",
        "#2e8b2e",
        "#2e8b2e",
        "#2e8b2e",
        "#2e8b2e",
        "#2e8b2e",
        "#2e8b2e",
        "#2e8b2e",
        "#2e8b2e",
        "#2e8b2e",
        "#2e8b2e",
        "#2e8b2e",
        "#2e8b2e",
        "#2e8b2e",
        "#2e8b2e",
        "#2e8b2e",
        "#2e8b2e",
        "#2e8b2e",
        "#2e8b2e"
      ],
      "xlim": [
        -0.5,
        24.7
      ],
      "xticks": [
        0,
        6,
        12,
        18,
        24
      ],
      "ylim": [
        5,
        -5
      ],
      "yticks": [
        -5,
        5
      ],
      "ref_lines": [
        {
          "axis": "y",
          "value": 0,
          "color": "#999999"
        }
      ]
    },
    {
      "type": "bar",
      "xlabel": "lead-time [h]",
      "x": [
        1,
        2,
        3,
        4,
        5,
        6,
        7,
        8,
        9,
        10,
        11,
        12,
        13,
        14,
        15,
        16,
        17,
        18,
        19,
        20,
        21,
        22,
        23,
        24
      ],
      "values": [
        -0.5,
        -0.2,
        -0.3,
        -0.3,
        -0.5,
        -0.3,
        -0.6,
        -1.0,
        -1.2,
        -0.7,
        -0.9,
        -0.9,
        -1.0,
        -1.5,
        -1.8,
        -0.9,
        -0.5,
        -0.9,
        -1.1,
        -0.9,
        -1.0,
        -1.4,
        -1.4,
        -1.4
      ],
      "colors": [
        "#2e8b2e",
        "#2e8b2e",
        "#2e8b2e",
        "#2e8b2e",
        "#2e8b2e",
        "#2e8b2e",
        "#2e8b2e",
        "#2e8b2e",
        "#2e8b2e",
        "#2e8b2e",
        "#2e8b2e",
        "#2e8b2e",
        "#2e8b2e",
        "#2e8b2e",
        "#2e8b2e",
        "#2e8b2e",
        "#2e8b2e",
        "#2e8b2e",
        "#2e8b2e",
        "#2e8b2e",
        "#2e8b2e",
        "#2e8b2e",
        "#2e8b2e",
        "#2e8b2e"
      ],
      "xlim": [
        -0.5,
        24.7
      ],
      "xticks": [
        0,
        6,
        12,
        18,
        24
      ],
      "ylim": [
        5,
        -5
      ],
      "yticks": [
        -5,
        5
      ],
      "tick_labels": "x",
      "ref_lines": [
        {
          "axis": "y",
          "value": 0,
          "color": "#999999"
        }
      ]
    }
  ]
}
